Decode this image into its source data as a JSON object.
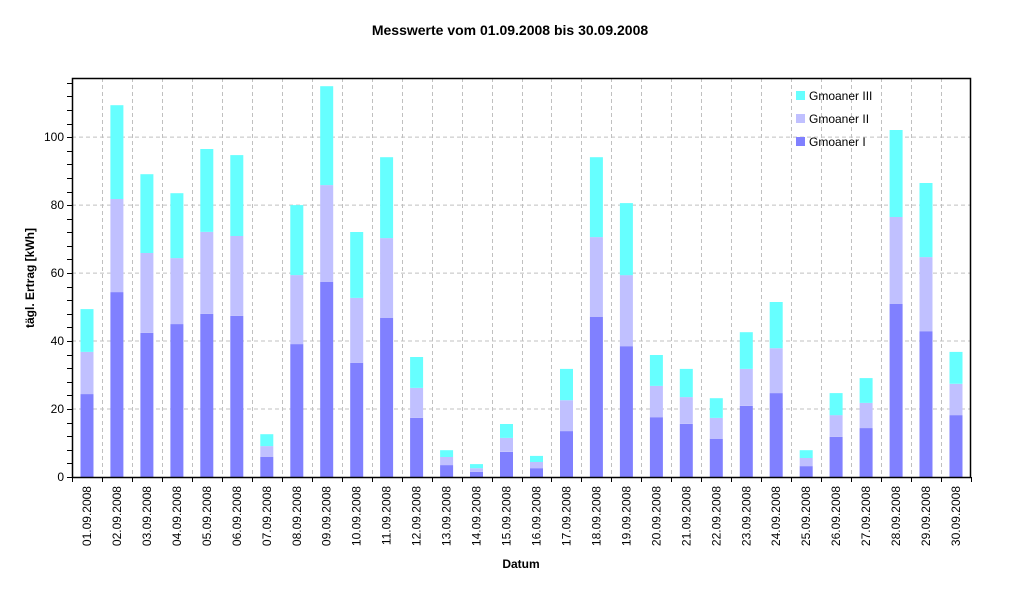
{
  "chart_data": {
    "type": "bar",
    "stacked": true,
    "title": "Messwerte vom 01.09.2008 bis 30.09.2008",
    "xlabel": "Datum",
    "ylabel": "tägl. Ertrag [kWh]",
    "ylim": [
      0,
      117.4
    ],
    "yticks": [
      0,
      20,
      40,
      60,
      80,
      100
    ],
    "grid": true,
    "legend_position": "top-right inside",
    "categories": [
      "01.09.2008",
      "02.09.2008",
      "03.09.2008",
      "04.09.2008",
      "05.09.2008",
      "06.09.2008",
      "07.09.2008",
      "08.09.2008",
      "09.09.2008",
      "10.09.2008",
      "11.09.2008",
      "12.09.2008",
      "13.09.2008",
      "14.09.2008",
      "15.09.2008",
      "16.09.2008",
      "17.09.2008",
      "18.09.2008",
      "19.09.2008",
      "20.09.2008",
      "21.09.2008",
      "22.09.2008",
      "23.09.2008",
      "24.09.2008",
      "25.09.2008",
      "26.09.2008",
      "27.09.2008",
      "28.09.2008",
      "29.09.2008",
      "30.09.2008"
    ],
    "series": [
      {
        "name": "Gmoaner I",
        "color": "#8080ff",
        "values": [
          24.4,
          54.4,
          42.4,
          45.0,
          48.0,
          47.4,
          5.9,
          39.1,
          57.4,
          33.6,
          46.8,
          17.4,
          3.5,
          1.5,
          7.4,
          2.6,
          13.5,
          47.1,
          38.5,
          17.6,
          15.6,
          11.2,
          20.9,
          24.7,
          3.2,
          11.8,
          14.4,
          50.9,
          42.9,
          18.2
        ]
      },
      {
        "name": "Gmoaner II",
        "color": "#c0c0ff",
        "values": [
          12.4,
          27.4,
          23.5,
          19.4,
          24.1,
          23.5,
          3.2,
          20.3,
          28.5,
          19.1,
          23.5,
          8.8,
          2.4,
          1.1,
          4.1,
          1.8,
          9.1,
          23.5,
          20.9,
          9.2,
          7.9,
          6.2,
          10.9,
          13.2,
          2.4,
          6.4,
          7.4,
          25.6,
          21.8,
          9.2
        ]
      },
      {
        "name": "Gmoaner III",
        "color": "#66ffff",
        "values": [
          12.6,
          27.6,
          23.2,
          19.1,
          24.4,
          23.8,
          3.5,
          20.6,
          29.1,
          19.4,
          23.8,
          9.1,
          2.0,
          1.2,
          4.1,
          1.8,
          9.2,
          23.5,
          21.2,
          9.1,
          8.3,
          5.8,
          10.8,
          13.6,
          2.3,
          6.5,
          7.3,
          25.6,
          21.8,
          9.4
        ]
      }
    ]
  },
  "legend": {
    "items": [
      {
        "label": "Gmoaner III",
        "color": "#66ffff"
      },
      {
        "label": "Gmoaner II",
        "color": "#c0c0ff"
      },
      {
        "label": "Gmoaner I",
        "color": "#8080ff"
      }
    ]
  }
}
